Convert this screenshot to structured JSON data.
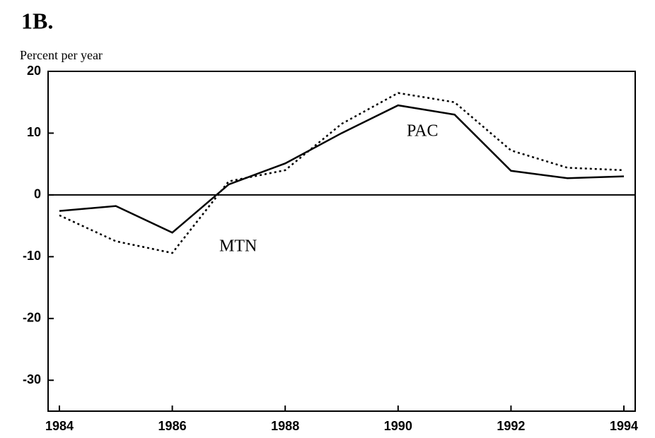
{
  "chart_data": {
    "type": "line",
    "title": "1B.",
    "y_label": "Percent per year",
    "x": [
      1984,
      1985,
      1986,
      1987,
      1988,
      1989,
      1990,
      1991,
      1992,
      1993,
      1994
    ],
    "series": [
      {
        "name": "PAC",
        "color": "#000000",
        "dash": false,
        "values": [
          -2.6,
          -1.8,
          -6.1,
          1.7,
          5.1,
          10,
          14.5,
          13.0,
          3.9,
          2.7,
          3.0
        ]
      },
      {
        "name": "MTN",
        "color": "#000000",
        "dash": true,
        "values": [
          -3.3,
          -7.5,
          -9.4,
          2.2,
          4.0,
          11.5,
          16.5,
          15.0,
          7.2,
          4.4,
          4.0
        ]
      }
    ],
    "xlim": [
      1983.8,
      1994.2
    ],
    "xticks": [
      1984,
      1986,
      1988,
      1990,
      1992,
      1994
    ],
    "ylim": [
      -35,
      20
    ],
    "yticks": [
      -30,
      -20,
      -10,
      0,
      10,
      20
    ],
    "grid": false
  }
}
